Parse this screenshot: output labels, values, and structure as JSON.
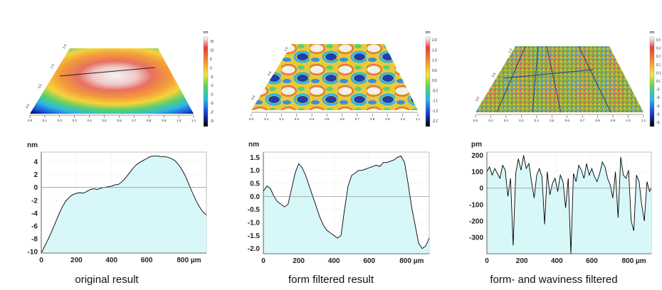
{
  "chart_data": [
    {
      "type": "area",
      "caption": "original result",
      "y_unit_label": "nm",
      "x_tick_labels": [
        "0",
        "200",
        "400",
        "600",
        "800 µm"
      ],
      "x_ticks": [
        0,
        200,
        400,
        600,
        800
      ],
      "y_ticks": [
        4,
        2,
        0,
        -2,
        -4,
        -6,
        -8,
        -10
      ],
      "y_tick_labels": [
        "4",
        "2",
        "0",
        "-2",
        "-4",
        "-6",
        "-8",
        "-10"
      ],
      "xlim": [
        0,
        940
      ],
      "ylim": [
        -10.2,
        5.5
      ],
      "grid": true,
      "fill_color": "#d7f7f9",
      "x": [
        0,
        20,
        40,
        60,
        80,
        100,
        120,
        140,
        160,
        180,
        200,
        220,
        240,
        260,
        280,
        300,
        320,
        340,
        360,
        380,
        400,
        420,
        440,
        460,
        480,
        500,
        520,
        540,
        560,
        580,
        600,
        620,
        640,
        660,
        680,
        700,
        720,
        740,
        760,
        780,
        800,
        820,
        840,
        860,
        880,
        900,
        920,
        940
      ],
      "y": [
        -10.2,
        -9.1,
        -8.0,
        -6.8,
        -5.5,
        -4.2,
        -3.0,
        -2.1,
        -1.5,
        -1.1,
        -0.9,
        -0.8,
        -0.9,
        -0.6,
        -0.3,
        -0.2,
        -0.3,
        -0.1,
        0.0,
        0.1,
        0.2,
        0.4,
        0.5,
        0.9,
        1.5,
        2.2,
        2.9,
        3.5,
        3.9,
        4.2,
        4.5,
        4.8,
        4.9,
        4.9,
        4.8,
        4.8,
        4.7,
        4.5,
        4.2,
        3.6,
        2.8,
        1.8,
        0.5,
        -0.8,
        -2.0,
        -3.0,
        -3.8,
        -4.3
      ]
    },
    {
      "type": "area",
      "caption": "form filtered result",
      "y_unit_label": "nm",
      "x_tick_labels": [
        "0",
        "200",
        "400",
        "600",
        "800 µm"
      ],
      "x_ticks": [
        0,
        200,
        400,
        600,
        800
      ],
      "y_ticks": [
        1.5,
        1.0,
        0.5,
        0.0,
        -0.5,
        -1.0,
        -1.5,
        -2.0
      ],
      "y_tick_labels": [
        "1.5",
        "1.0",
        "0.5",
        "0.0",
        "-0.5",
        "-1.0",
        "-1.5",
        "-2.0"
      ],
      "xlim": [
        0,
        940
      ],
      "ylim": [
        -2.2,
        1.7
      ],
      "grid": true,
      "fill_color": "#d7f7f9",
      "x": [
        0,
        20,
        40,
        60,
        80,
        100,
        120,
        140,
        160,
        180,
        200,
        220,
        240,
        260,
        280,
        300,
        320,
        340,
        360,
        380,
        400,
        420,
        440,
        460,
        480,
        500,
        520,
        540,
        560,
        580,
        600,
        620,
        640,
        660,
        680,
        700,
        720,
        740,
        760,
        780,
        800,
        820,
        840,
        860,
        880,
        900,
        920,
        940
      ],
      "y": [
        0.2,
        0.4,
        0.3,
        0.0,
        -0.2,
        -0.3,
        -0.4,
        -0.3,
        0.3,
        0.9,
        1.25,
        1.1,
        0.8,
        0.4,
        0.0,
        -0.4,
        -0.8,
        -1.1,
        -1.3,
        -1.4,
        -1.5,
        -1.6,
        -1.5,
        -0.5,
        0.4,
        0.8,
        0.9,
        1.0,
        1.0,
        1.05,
        1.1,
        1.15,
        1.2,
        1.15,
        1.3,
        1.3,
        1.35,
        1.4,
        1.5,
        1.55,
        1.3,
        0.5,
        -0.4,
        -1.1,
        -1.8,
        -2.0,
        -1.9,
        -1.6
      ]
    },
    {
      "type": "area",
      "caption": "form- and waviness filtered",
      "y_unit_label": "pm",
      "x_tick_labels": [
        "0",
        "200",
        "400",
        "600",
        "800 µm"
      ],
      "x_ticks": [
        0,
        200,
        400,
        600,
        800
      ],
      "y_ticks": [
        200,
        100,
        0,
        -100,
        -200,
        -300
      ],
      "y_tick_labels": [
        "200",
        "100",
        "0",
        "-100",
        "-200",
        "-300"
      ],
      "xlim": [
        0,
        940
      ],
      "ylim": [
        -400,
        220
      ],
      "grid": true,
      "fill_color": "#d7f7f9",
      "x": [
        0,
        15,
        30,
        45,
        60,
        75,
        90,
        105,
        120,
        135,
        150,
        165,
        180,
        195,
        210,
        225,
        240,
        255,
        270,
        285,
        300,
        315,
        330,
        345,
        360,
        375,
        390,
        405,
        420,
        435,
        450,
        465,
        480,
        495,
        510,
        525,
        540,
        555,
        570,
        585,
        600,
        615,
        630,
        645,
        660,
        675,
        690,
        705,
        720,
        735,
        750,
        765,
        780,
        795,
        810,
        825,
        840,
        855,
        870,
        885,
        900,
        915,
        930,
        940
      ],
      "y": [
        100,
        130,
        80,
        120,
        90,
        60,
        140,
        110,
        -50,
        60,
        -350,
        90,
        180,
        110,
        200,
        120,
        150,
        40,
        -60,
        80,
        120,
        70,
        -220,
        100,
        -40,
        30,
        60,
        -20,
        80,
        40,
        -120,
        60,
        -400,
        90,
        40,
        140,
        110,
        60,
        150,
        80,
        120,
        70,
        40,
        90,
        160,
        130,
        60,
        20,
        -60,
        100,
        -180,
        190,
        80,
        60,
        110,
        -200,
        -260,
        80,
        40,
        -100,
        -200,
        40,
        -20,
        0
      ]
    }
  ],
  "surfaces": [
    {
      "colorbar_unit": "nm",
      "colorbar_ticks": [
        "15",
        "10",
        "5",
        "0",
        "-5",
        "-10",
        "-15",
        "-20",
        "-25",
        "-30"
      ],
      "axis_ticks_front": [
        "0.0",
        "0.1",
        "0.2",
        "0.3",
        "0.4",
        "0.5",
        "0.6",
        "0.7",
        "0.8",
        "0.9",
        "1.0",
        "1.1"
      ],
      "axis_ticks_side": [
        "0.0",
        "0.5",
        "1.0",
        "1.5"
      ]
    },
    {
      "colorbar_unit": "nm",
      "colorbar_ticks": [
        "2.0",
        "1.5",
        "1.0",
        "0.5",
        "0.0",
        "-0.5",
        "-1.0",
        "-1.5",
        "-2.0"
      ],
      "axis_ticks_front": [
        "0.0",
        "0.1",
        "0.2",
        "0.3",
        "0.4",
        "0.5",
        "0.6",
        "0.7",
        "0.8",
        "0.9",
        "1.0",
        "1.1"
      ],
      "axis_ticks_side": [
        "0.0",
        "0.5",
        "1.0"
      ]
    },
    {
      "colorbar_unit": "nm",
      "colorbar_ticks": [
        "0.5",
        "0.4",
        "0.3",
        "0.2",
        "0.1",
        "0.0",
        "-0.1",
        "-0.2",
        "-0.3",
        "-0.4",
        "-0.5"
      ],
      "axis_ticks_front": [
        "0.0",
        "0.1",
        "0.2",
        "0.3",
        "0.4",
        "0.5",
        "0.6",
        "0.7",
        "0.8",
        "0.9",
        "1.0",
        "1.1"
      ],
      "axis_ticks_side": [
        "0.0",
        "0.5",
        "1.0"
      ]
    }
  ],
  "colors": {
    "line": "#000000",
    "fill": "#d7f7f9",
    "grid": "#cfcfcf"
  }
}
